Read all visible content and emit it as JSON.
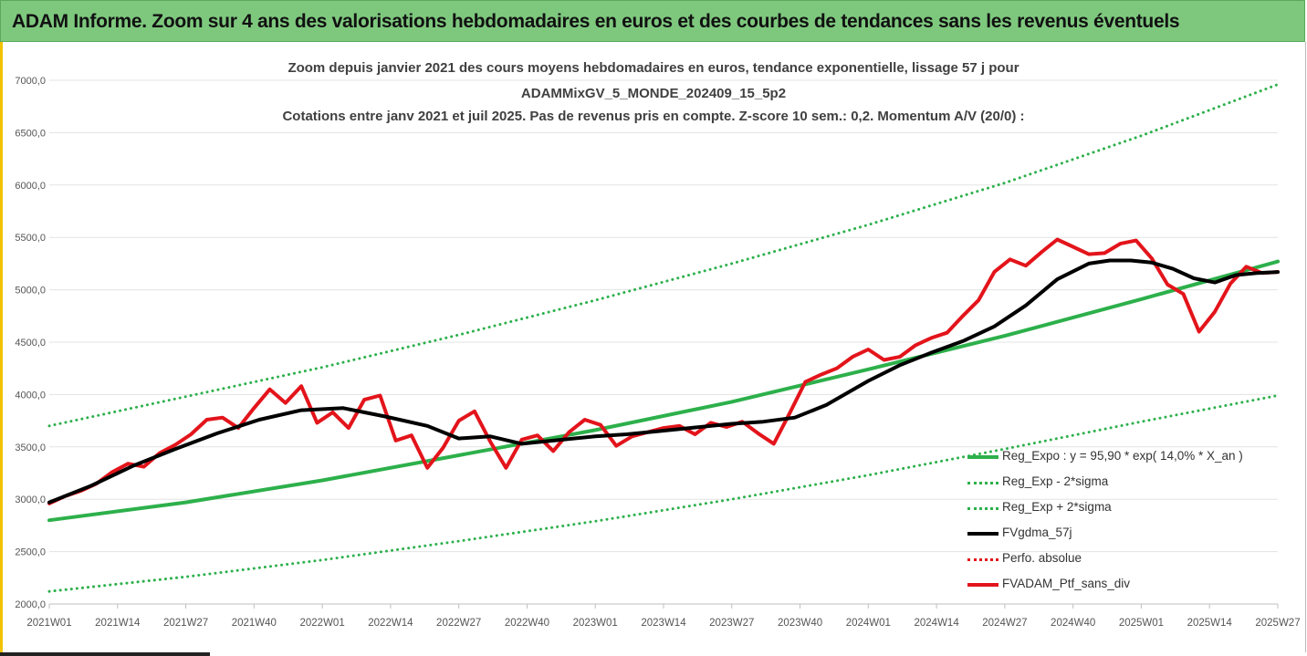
{
  "banner": {
    "title": "ADAM Informe. Zoom sur 4 ans des valorisations hebdomadaires en euros et des courbes de tendances sans les revenus éventuels"
  },
  "colors": {
    "banner_bg": "#7ec87e",
    "regression": "#2db04b",
    "ma": "#000000",
    "portfolio": "#e3141b",
    "perf_absolue": "#e3141b"
  },
  "chart_data": {
    "type": "line",
    "title_lines": [
      "Zoom depuis janvier 2021 des cours moyens hebdomadaires  en euros, tendance exponentielle, lissage 57 j pour",
      "ADAMMixGV_5_MONDE_202409_15_5p2",
      "Cotations entre janv 2021 et juil 2025. Pas de revenus pris en compte. Z-score 10 sem.: 0,2. Momentum A/V (20/0) :"
    ],
    "x_tick_labels": [
      "2021W01",
      "2021W14",
      "2021W27",
      "2021W40",
      "2022W01",
      "2022W14",
      "2022W27",
      "2022W40",
      "2023W01",
      "2023W14",
      "2023W27",
      "2023W40",
      "2024W01",
      "2024W14",
      "2024W27",
      "2024W40",
      "2025W01",
      "2025W14",
      "2025W27"
    ],
    "y_tick_labels": [
      "2000,0",
      "2500,0",
      "3000,0",
      "3500,0",
      "4000,0",
      "4500,0",
      "5000,0",
      "5500,0",
      "6000,0",
      "6500,0",
      "7000,0"
    ],
    "ylim": [
      2000,
      7000
    ],
    "xlim": [
      0,
      234
    ],
    "grid": "horizontal",
    "legend_position": "bottom-right",
    "series": [
      {
        "name": "Reg_Expo : y = 95,90 * exp( 14,0% *  X_an )",
        "style": "solid-thick",
        "color": "#2db04b",
        "x": [
          0,
          26,
          52,
          78,
          104,
          130,
          156,
          182,
          208,
          234
        ],
        "y": [
          2800,
          2970,
          3180,
          3420,
          3660,
          3930,
          4240,
          4560,
          4910,
          5270
        ]
      },
      {
        "name": "Reg_Exp - 2*sigma",
        "style": "dotted",
        "color": "#2db04b",
        "x": [
          0,
          26,
          52,
          78,
          104,
          130,
          156,
          182,
          208,
          234
        ],
        "y": [
          2120,
          2260,
          2420,
          2600,
          2790,
          3000,
          3230,
          3480,
          3740,
          3990
        ]
      },
      {
        "name": "Reg_Exp + 2*sigma",
        "style": "dotted",
        "color": "#2db04b",
        "x": [
          0,
          26,
          52,
          78,
          104,
          130,
          156,
          182,
          208,
          234
        ],
        "y": [
          3700,
          3980,
          4260,
          4570,
          4900,
          5250,
          5620,
          6020,
          6470,
          6960
        ]
      },
      {
        "name": "FVgdma_57j",
        "style": "solid-thick",
        "color": "#000000",
        "x": [
          0,
          8,
          16,
          24,
          32,
          40,
          48,
          56,
          64,
          72,
          78,
          84,
          90,
          96,
          104,
          110,
          116,
          122,
          130,
          136,
          142,
          148,
          156,
          162,
          168,
          174,
          180,
          186,
          192,
          198,
          202,
          206,
          210,
          214,
          218,
          222,
          226,
          230,
          234
        ],
        "y": [
          2970,
          3130,
          3320,
          3480,
          3630,
          3760,
          3850,
          3870,
          3790,
          3700,
          3580,
          3600,
          3530,
          3560,
          3600,
          3620,
          3650,
          3680,
          3720,
          3740,
          3780,
          3900,
          4130,
          4280,
          4400,
          4510,
          4650,
          4850,
          5100,
          5250,
          5280,
          5280,
          5260,
          5200,
          5110,
          5070,
          5140,
          5160,
          5170
        ]
      },
      {
        "name": "Perfo. absolue",
        "style": "dotted",
        "color": "#e3141b",
        "x": [],
        "y": []
      },
      {
        "name": "FVADAM_Ptf_sans_div",
        "style": "solid-thick",
        "color": "#e3141b",
        "x": [
          0,
          3,
          6,
          9,
          12,
          15,
          18,
          21,
          24,
          27,
          30,
          33,
          36,
          39,
          42,
          45,
          48,
          51,
          54,
          57,
          60,
          63,
          66,
          69,
          72,
          75,
          78,
          81,
          84,
          87,
          90,
          93,
          96,
          99,
          102,
          105,
          108,
          111,
          114,
          117,
          120,
          123,
          126,
          129,
          132,
          135,
          138,
          141,
          144,
          147,
          150,
          153,
          156,
          159,
          162,
          165,
          168,
          171,
          174,
          177,
          180,
          183,
          186,
          189,
          192,
          195,
          198,
          201,
          204,
          207,
          210,
          213,
          216,
          219,
          222,
          225,
          228,
          231,
          234
        ],
        "y": [
          2960,
          3030,
          3080,
          3150,
          3260,
          3340,
          3310,
          3440,
          3520,
          3620,
          3760,
          3780,
          3680,
          3870,
          4050,
          3920,
          4080,
          3730,
          3830,
          3680,
          3950,
          3990,
          3560,
          3610,
          3300,
          3490,
          3750,
          3840,
          3550,
          3300,
          3570,
          3610,
          3460,
          3640,
          3760,
          3710,
          3510,
          3600,
          3640,
          3680,
          3700,
          3620,
          3730,
          3690,
          3740,
          3630,
          3530,
          3820,
          4120,
          4190,
          4250,
          4360,
          4430,
          4330,
          4360,
          4470,
          4540,
          4590,
          4750,
          4900,
          5170,
          5290,
          5230,
          5360,
          5480,
          5410,
          5340,
          5350,
          5440,
          5470,
          5300,
          5050,
          4960,
          4600,
          4790,
          5060,
          5220,
          5160,
          5170
        ]
      }
    ]
  }
}
